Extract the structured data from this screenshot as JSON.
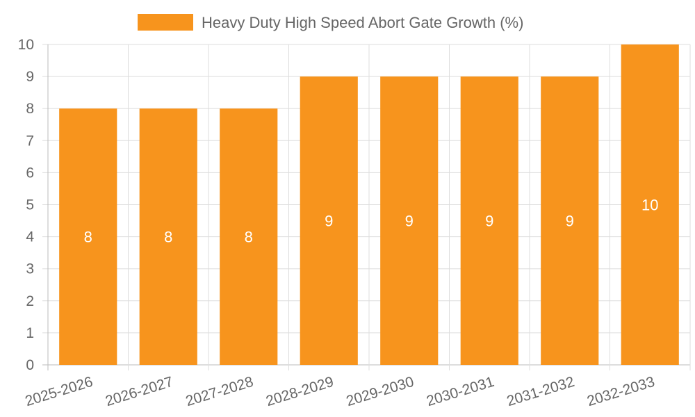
{
  "chart_data": {
    "type": "bar",
    "title": "",
    "xlabel": "",
    "ylabel": "",
    "ylim": [
      0,
      10
    ],
    "yticks": [
      "0",
      "1",
      "2",
      "3",
      "4",
      "5",
      "6",
      "7",
      "8",
      "9",
      "10"
    ],
    "grid": true,
    "legend_position": "top-center",
    "categories": [
      "2025-2026",
      "2026-2027",
      "2027-2028",
      "2028-2029",
      "2029-2030",
      "2030-2031",
      "2031-2032",
      "2032-2033"
    ],
    "series": [
      {
        "name": "Heavy Duty High Speed Abort Gate Growth (%)",
        "values": [
          8,
          8,
          8,
          9,
          9,
          9,
          9,
          10
        ],
        "data_labels": [
          "8",
          "8",
          "8",
          "9",
          "9",
          "9",
          "9",
          "10"
        ],
        "color": "#F7941D"
      }
    ]
  },
  "colors": {
    "grid": "#DDDDDD",
    "axis": "#BBBBBB",
    "tick_text": "#666666",
    "legend_text": "#666666",
    "data_label": "#FFFFFF"
  }
}
